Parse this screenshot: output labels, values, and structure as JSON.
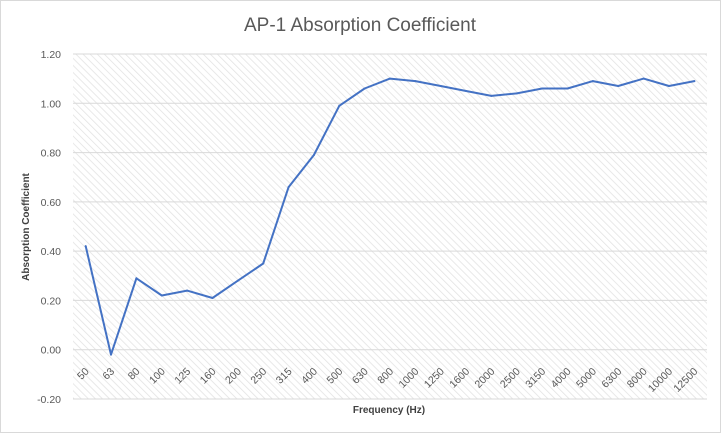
{
  "chart_data": {
    "type": "line",
    "title": "AP-1 Absorption Coefficient",
    "xlabel": "Frequency (Hz)",
    "ylabel": "Absorption Coefficient",
    "ylim": [
      -0.2,
      1.2
    ],
    "y_ticks": [
      "-0.20",
      "0.00",
      "0.20",
      "0.40",
      "0.60",
      "0.80",
      "1.00",
      "1.20"
    ],
    "y_tick_values": [
      -0.2,
      0.0,
      0.2,
      0.4,
      0.6,
      0.8,
      1.0,
      1.2
    ],
    "categories": [
      "50",
      "63",
      "80",
      "100",
      "125",
      "160",
      "200",
      "250",
      "315",
      "400",
      "500",
      "630",
      "800",
      "1000",
      "1250",
      "1600",
      "2000",
      "2500",
      "3150",
      "4000",
      "5000",
      "6300",
      "8000",
      "10000",
      "12500"
    ],
    "series": [
      {
        "values": [
          0.42,
          -0.02,
          0.29,
          0.22,
          0.24,
          0.21,
          0.28,
          0.35,
          0.66,
          0.79,
          0.99,
          1.06,
          1.1,
          1.09,
          1.07,
          1.05,
          1.03,
          1.04,
          1.06,
          1.06,
          1.09,
          1.07,
          1.1,
          1.07,
          1.09
        ],
        "color": "#4472c4"
      }
    ],
    "grid": true,
    "legend": "none"
  }
}
